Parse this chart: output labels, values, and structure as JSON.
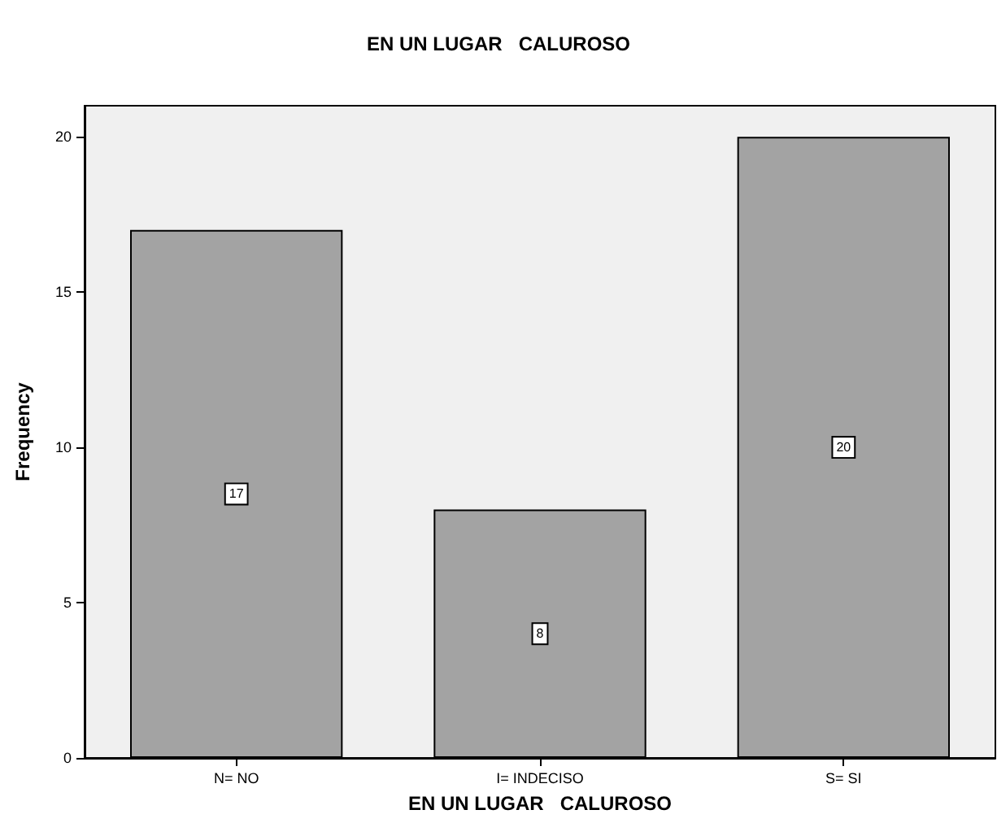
{
  "chart_data": {
    "type": "bar",
    "title": "EN UN LUGAR   CALUROSO",
    "xlabel": "EN UN LUGAR   CALUROSO",
    "ylabel": "Frequency",
    "categories": [
      "N= NO",
      "I= INDECISO",
      "S= SI"
    ],
    "values": [
      17,
      8,
      20
    ],
    "color": "#a3a3a3",
    "ylim": [
      0,
      21
    ],
    "yticks": [
      0,
      5,
      10,
      15,
      20
    ],
    "grid": false,
    "data_labels": true
  }
}
